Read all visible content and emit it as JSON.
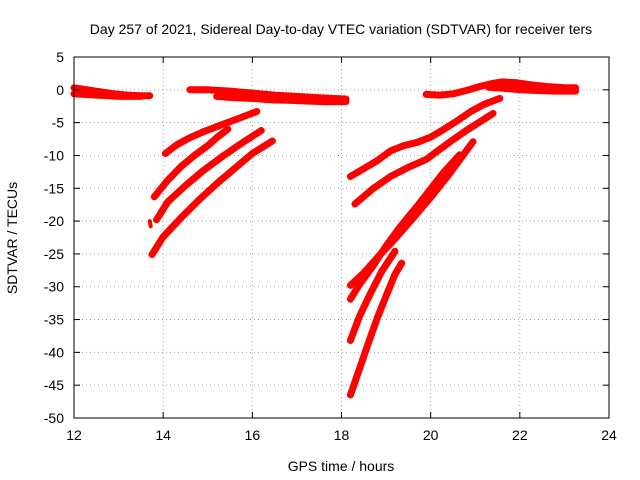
{
  "chart_data": {
    "type": "scatter",
    "title": "Day 257 of 2021, Sidereal Day-to-day VTEC variation (SDTVAR) for receiver ters",
    "xlabel": "GPS time / hours",
    "ylabel": "SDTVAR / TECUs",
    "xlim": [
      12,
      24
    ],
    "ylim": [
      -50,
      5
    ],
    "x_ticks": [
      12,
      14,
      16,
      18,
      20,
      22,
      24
    ],
    "x_tick_labels": [
      "12",
      "14",
      "16",
      "18",
      "20",
      "22",
      "24"
    ],
    "y_ticks": [
      5,
      0,
      -5,
      -10,
      -15,
      -20,
      -25,
      -30,
      -35,
      -40,
      -45,
      -50
    ],
    "y_tick_labels": [
      "5",
      "0",
      "-5",
      "-10",
      "-15",
      "-20",
      "-25",
      "-30",
      "-35",
      "-40",
      "-45",
      "-50"
    ],
    "grid": true,
    "marker_color": "#ff0000",
    "series": [
      {
        "name": "arc-1",
        "x": [
          12.0,
          12.3,
          12.6,
          12.9,
          13.2,
          13.5,
          13.7
        ],
        "y": [
          0.3,
          0.0,
          -0.3,
          -0.6,
          -0.8,
          -0.9,
          -0.9
        ]
      },
      {
        "name": "arc-2",
        "x": [
          12.0,
          12.5,
          13.0,
          13.5
        ],
        "y": [
          -0.6,
          -0.8,
          -1.0,
          -1.0
        ]
      },
      {
        "name": "arc-3",
        "x": [
          14.6,
          15.0,
          15.5,
          16.0,
          16.5,
          17.0,
          17.5,
          18.1
        ],
        "y": [
          0.0,
          0.0,
          -0.2,
          -0.5,
          -0.8,
          -1.0,
          -1.2,
          -1.4
        ]
      },
      {
        "name": "arc-4",
        "x": [
          15.2,
          15.6,
          16.0,
          16.4,
          16.8,
          17.2,
          17.6,
          18.1
        ],
        "y": [
          -1.0,
          -1.2,
          -1.3,
          -1.5,
          -1.6,
          -1.7,
          -1.8,
          -1.8
        ]
      },
      {
        "name": "arc-5",
        "x": [
          14.05,
          14.3,
          14.6,
          14.9,
          15.2,
          15.6,
          16.1
        ],
        "y": [
          -9.7,
          -8.4,
          -7.3,
          -6.4,
          -5.6,
          -4.6,
          -3.3
        ]
      },
      {
        "name": "arc-6",
        "x": [
          13.8,
          14.1,
          14.4,
          14.7,
          15.0,
          15.2,
          15.45
        ],
        "y": [
          -16.3,
          -13.8,
          -11.7,
          -10.0,
          -8.5,
          -7.3,
          -6.0
        ]
      },
      {
        "name": "arc-7",
        "x": [
          13.85,
          14.1,
          14.5,
          14.9,
          15.3,
          15.7,
          16.2
        ],
        "y": [
          -19.8,
          -17.1,
          -14.6,
          -12.3,
          -10.3,
          -8.4,
          -6.2
        ]
      },
      {
        "name": "arc-8",
        "x": [
          13.75,
          14.0,
          14.4,
          14.8,
          15.2,
          15.6,
          16.0,
          16.45
        ],
        "y": [
          -25.1,
          -22.4,
          -19.5,
          -16.8,
          -14.3,
          -12.0,
          -9.7,
          -7.8
        ]
      },
      {
        "name": "arc-9",
        "x": [
          13.7,
          13.72
        ],
        "y": [
          -20.0,
          -20.8
        ]
      },
      {
        "name": "arc-10",
        "x": [
          19.9,
          20.2,
          20.5,
          20.8,
          21.1,
          21.4,
          21.6,
          21.9,
          22.2,
          22.6,
          23.0,
          23.25
        ],
        "y": [
          -0.7,
          -0.8,
          -0.6,
          -0.1,
          0.5,
          1.0,
          1.2,
          1.1,
          0.8,
          0.5,
          0.3,
          0.3
        ]
      },
      {
        "name": "arc-11",
        "x": [
          21.3,
          21.7,
          22.0,
          22.4,
          22.8,
          23.25
        ],
        "y": [
          0.4,
          0.2,
          0.0,
          -0.1,
          -0.2,
          -0.2
        ]
      },
      {
        "name": "arc-12",
        "x": [
          18.2,
          18.5,
          18.8,
          19.1,
          19.4,
          19.7,
          20.0,
          20.3,
          20.6,
          20.9,
          21.2,
          21.55
        ],
        "y": [
          -13.2,
          -12.0,
          -10.8,
          -9.3,
          -8.5,
          -8.0,
          -7.2,
          -6.0,
          -4.7,
          -3.3,
          -2.2,
          -1.3
        ]
      },
      {
        "name": "arc-13",
        "x": [
          18.3,
          18.7,
          19.1,
          19.5,
          19.9,
          20.2,
          20.5,
          20.8,
          21.1,
          21.4
        ],
        "y": [
          -17.4,
          -15.1,
          -13.2,
          -11.8,
          -10.6,
          -9.1,
          -7.6,
          -6.2,
          -4.9,
          -3.6
        ]
      },
      {
        "name": "arc-14",
        "x": [
          18.2,
          18.5,
          18.8,
          19.2,
          19.6,
          20.0,
          20.4,
          20.7,
          20.95
        ],
        "y": [
          -29.8,
          -27.9,
          -25.6,
          -22.7,
          -19.6,
          -16.4,
          -13.0,
          -10.2,
          -7.9
        ]
      },
      {
        "name": "arc-15",
        "x": [
          18.2,
          18.4,
          18.7,
          19.0,
          19.3,
          19.7,
          20.0,
          20.3,
          20.65
        ],
        "y": [
          -31.9,
          -29.7,
          -26.9,
          -23.8,
          -21.0,
          -17.7,
          -15.1,
          -12.5,
          -9.9
        ]
      },
      {
        "name": "arc-16",
        "x": [
          18.2,
          18.4,
          18.65,
          18.9,
          19.2
        ],
        "y": [
          -38.2,
          -34.6,
          -31.0,
          -27.7,
          -24.6
        ]
      },
      {
        "name": "arc-17",
        "x": [
          18.2,
          18.4,
          18.6,
          18.8,
          19.0,
          19.2,
          19.35
        ],
        "y": [
          -46.5,
          -42.6,
          -38.6,
          -34.8,
          -31.4,
          -28.1,
          -26.4
        ]
      }
    ]
  }
}
